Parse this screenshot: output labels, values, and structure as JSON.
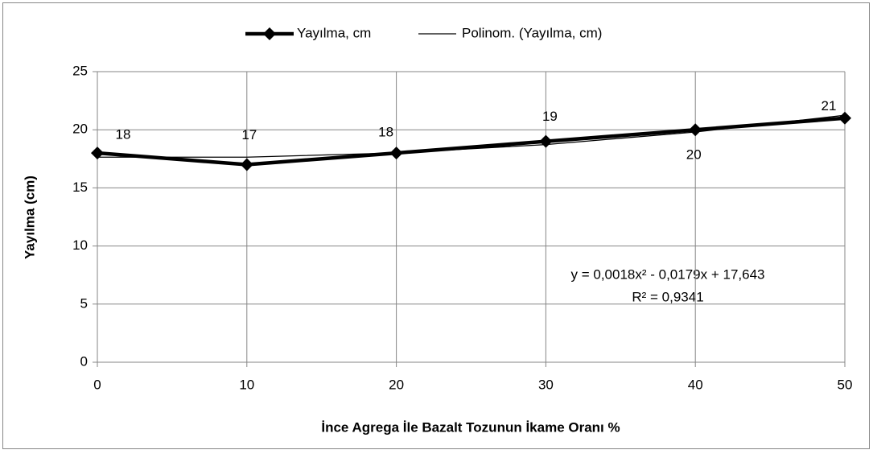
{
  "chart_data": {
    "type": "line",
    "x": [
      0,
      10,
      20,
      30,
      40,
      50
    ],
    "series": [
      {
        "name": "Yayılma, cm",
        "color": "#000000",
        "values": [
          18,
          17,
          18,
          19,
          20,
          21
        ],
        "marker": "diamond",
        "data_labels": true
      },
      {
        "name": "Polinom. (Yayılma, cm)",
        "color": "#000000",
        "values": [
          17.643,
          17.644,
          18.005,
          18.726,
          19.807,
          21.248
        ]
      }
    ],
    "xlabel": "İnce Agrega İle Bazalt Tozunun İkame Oranı %",
    "ylabel": "Yayılma (cm)",
    "xlim": [
      0,
      50
    ],
    "xticks": [
      0,
      10,
      20,
      30,
      40,
      50
    ],
    "ylim": [
      0,
      25
    ],
    "yticks": [
      0,
      5,
      10,
      15,
      20,
      25
    ],
    "grid": true,
    "legend": "top",
    "annotations": [
      "y = 0,0018x² - 0,0179x + 17,643",
      "R² = 0,9341"
    ]
  }
}
